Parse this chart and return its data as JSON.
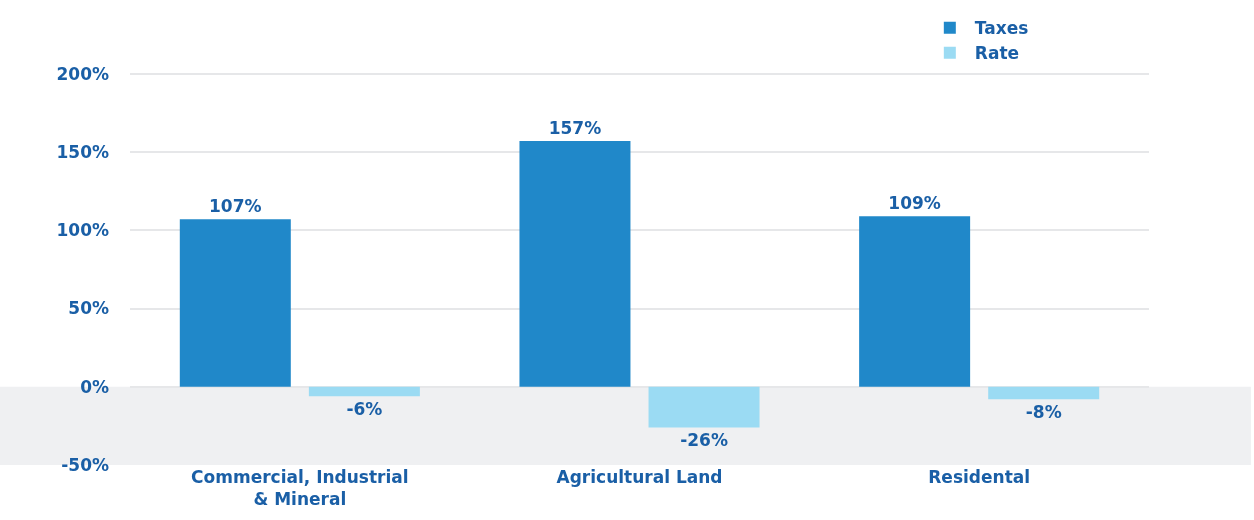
{
  "chart_data": {
    "type": "bar",
    "categories": [
      "Commercial, Industrial & Mineral",
      "Agricultural Land",
      "Residental"
    ],
    "series": [
      {
        "name": "Taxes",
        "color": "#2088c9",
        "values": [
          107,
          157,
          109
        ],
        "value_labels": [
          "107%",
          "157%",
          "109%"
        ]
      },
      {
        "name": "Rate",
        "color": "#9bdbf3",
        "values": [
          -6,
          -26,
          -8
        ],
        "value_labels": [
          "-6%",
          "-26%",
          "-8%"
        ]
      }
    ],
    "ylim": [
      -50,
      235
    ],
    "yticks": [
      {
        "value": -50,
        "label": "-50%"
      },
      {
        "value": 0,
        "label": "0%"
      },
      {
        "value": 50,
        "label": "50%"
      },
      {
        "value": 100,
        "label": "100%"
      },
      {
        "value": 150,
        "label": "150%"
      },
      {
        "value": 200,
        "label": "200%"
      }
    ],
    "bands": [
      {
        "axis": "y",
        "from": -50,
        "to": 0,
        "color": "#eff0f2"
      }
    ],
    "grid": "y",
    "legend": "top right"
  }
}
